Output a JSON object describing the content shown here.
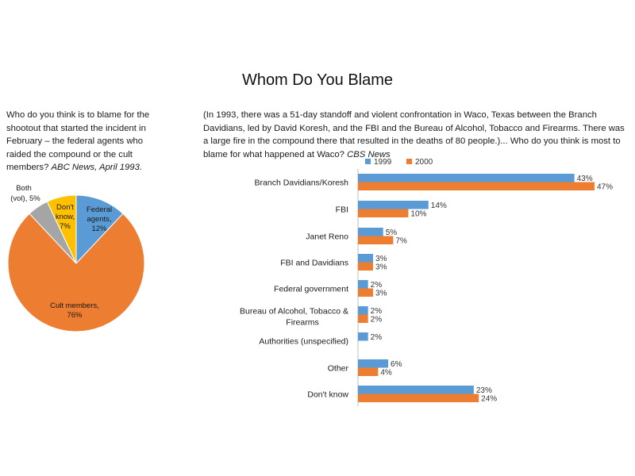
{
  "title": "Whom Do You Blame",
  "left_question": {
    "text": "Who do you think is to blame for the shootout that started the incident in February – the federal agents who raided the compound or the cult members?",
    "source": "ABC News, April 1993."
  },
  "right_question": {
    "text": "(In 1993, there was a 51-day standoff and violent confrontation in Waco, Texas between the Branch Davidians, led by David Koresh, and the FBI and the Bureau of Alcohol, Tobacco and Firearms. There was a large fire in the compound there that resulted in the deaths of 80 people.)... Who do you think is most to blame for what happened at Waco?",
    "source": "CBS News"
  },
  "colors": {
    "blue": "#5b9bd5",
    "orange": "#ed7d31",
    "gray": "#a5a5a5",
    "yellow": "#ffc000"
  },
  "chart_data": [
    {
      "type": "pie",
      "title": "",
      "slices": [
        {
          "label": "Federal agents,",
          "value": 12,
          "value_label": "12%",
          "color": "#5b9bd5"
        },
        {
          "label": "Cult members,",
          "value": 76,
          "value_label": "76%",
          "color": "#ed7d31"
        },
        {
          "label": "Both (vol),",
          "value": 5,
          "value_label": "5%",
          "color": "#a5a5a5"
        },
        {
          "label": "Don't know,",
          "value": 7,
          "value_label": "7%",
          "color": "#ffc000"
        }
      ]
    },
    {
      "type": "bar",
      "orientation": "horizontal",
      "legend_position": "top",
      "xlim": [
        0,
        50
      ],
      "categories": [
        "Branch Davidians/Koresh",
        "FBI",
        "Janet Reno",
        "FBI and Davidians",
        "Federal government",
        "Bureau of Alcohol, Tobacco & Firearms",
        "Authorities (unspecified)",
        "Other",
        "Don't know"
      ],
      "series": [
        {
          "name": "1999",
          "color": "#5b9bd5",
          "values": [
            43,
            14,
            5,
            3,
            2,
            2,
            2,
            6,
            23
          ],
          "labels": [
            "43%",
            "14%",
            "5%",
            "3%",
            "2%",
            "2%",
            "2%",
            "6%",
            "23%"
          ]
        },
        {
          "name": "2000",
          "color": "#ed7d31",
          "values": [
            47,
            10,
            7,
            3,
            3,
            2,
            null,
            4,
            24
          ],
          "labels": [
            "47%",
            "10%",
            "7%",
            "3%",
            "3%",
            "2%",
            null,
            "4%",
            "24%"
          ]
        }
      ]
    }
  ]
}
